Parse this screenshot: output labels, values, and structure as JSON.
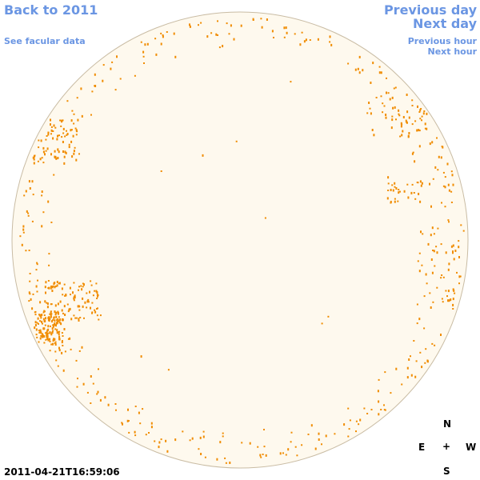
{
  "navigation": {
    "back": "Back to 2011",
    "facular": "See facular data",
    "previous_day": "Previous day",
    "next_day": "Next day",
    "previous_hour": "Previous hour",
    "next_hour": "Next hour"
  },
  "timestamp": "2011-04-21T16:59:06",
  "compass": {
    "north": "N",
    "east": "E",
    "center": "+",
    "west": "W",
    "south": "S"
  }
}
